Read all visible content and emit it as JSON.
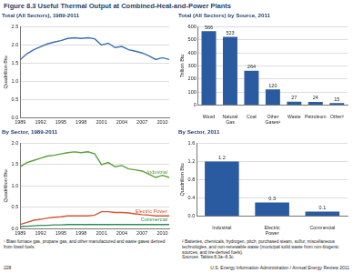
{
  "title": "Figure 8.3 Useful Thermal Output at Combined-Heat-and-Power Plants",
  "chart_data": [
    {
      "type": "line",
      "title": "Total (All Sectors), 1989-2011",
      "ylabel": "Quadrillion Btu",
      "x": [
        1989,
        1990,
        1991,
        1992,
        1993,
        1994,
        1995,
        1996,
        1997,
        1998,
        1999,
        2000,
        2001,
        2002,
        2003,
        2004,
        2005,
        2006,
        2007,
        2008,
        2009,
        2010,
        2011
      ],
      "values": [
        1.6,
        1.76,
        1.87,
        1.95,
        2.03,
        2.08,
        2.12,
        2.18,
        2.2,
        2.18,
        2.2,
        2.17,
        2.0,
        2.05,
        1.93,
        1.96,
        1.87,
        1.83,
        1.78,
        1.7,
        1.6,
        1.65,
        1.6
      ],
      "color": "#3a6fb0",
      "xlim": [
        1989,
        2011
      ],
      "xticks": [
        1989,
        1992,
        1995,
        1998,
        2001,
        2004,
        2007,
        2010
      ],
      "ylim": [
        0,
        2.5
      ],
      "yticks": [
        {
          "value": 0,
          "label": "0.0"
        },
        0.5,
        {
          "value": 1,
          "label": "1.0"
        },
        1.5,
        {
          "value": 2,
          "label": "2.0"
        },
        2.5
      ],
      "grid": true
    },
    {
      "type": "bar",
      "title": "Total (All Sectors) by Source, 2011",
      "ylabel": "Trillion Btu",
      "categories": [
        "Wood",
        "Natural Gas",
        "Coal",
        "Other Gases¹",
        "Waste",
        "Petroleum",
        "Other²"
      ],
      "values": [
        566,
        523,
        264,
        120,
        27,
        24,
        15
      ],
      "color": "#2a5aa0",
      "ylim": [
        0,
        600
      ],
      "yticks": [
        0,
        100,
        200,
        300,
        400,
        500,
        600
      ],
      "grid": true,
      "data_labels": true
    },
    {
      "type": "line",
      "title": "By Sector, 1989-2011",
      "ylabel": "Quadrillion Btu",
      "x": [
        1989,
        1990,
        1991,
        1992,
        1993,
        1994,
        1995,
        1996,
        1997,
        1998,
        1999,
        2000,
        2001,
        2002,
        2003,
        2004,
        2005,
        2006,
        2007,
        2008,
        2009,
        2010,
        2011
      ],
      "series": [
        {
          "name": "Industrial",
          "color": "#5a9e3a",
          "values": [
            1.45,
            1.55,
            1.6,
            1.65,
            1.7,
            1.72,
            1.75,
            1.78,
            1.8,
            1.78,
            1.8,
            1.75,
            1.5,
            1.55,
            1.45,
            1.48,
            1.4,
            1.38,
            1.35,
            1.28,
            1.2,
            1.25,
            1.2
          ]
        },
        {
          "name": "Electric Power",
          "color": "#d0573a",
          "values": [
            0.1,
            0.15,
            0.2,
            0.22,
            0.25,
            0.27,
            0.28,
            0.3,
            0.3,
            0.3,
            0.3,
            0.32,
            0.4,
            0.4,
            0.38,
            0.38,
            0.37,
            0.35,
            0.33,
            0.32,
            0.3,
            0.3,
            0.3
          ]
        },
        {
          "name": "Commercial",
          "color": "#2e8b57",
          "values": [
            0.05,
            0.06,
            0.07,
            0.08,
            0.08,
            0.09,
            0.09,
            0.1,
            0.1,
            0.1,
            0.1,
            0.1,
            0.1,
            0.1,
            0.1,
            0.1,
            0.1,
            0.1,
            0.1,
            0.1,
            0.1,
            0.1,
            0.1
          ]
        }
      ],
      "xlim": [
        1989,
        2011
      ],
      "xticks": [
        1989,
        1992,
        1995,
        1998,
        2001,
        2004,
        2007,
        2010
      ],
      "ylim": [
        0,
        2
      ],
      "yticks": [
        {
          "value": 0,
          "label": "0.0"
        },
        0.5,
        {
          "value": 1,
          "label": "1.0"
        },
        1.5,
        {
          "value": 2,
          "label": "2.0"
        }
      ],
      "grid": true
    },
    {
      "type": "bar",
      "title": "By Sector, 2011",
      "ylabel": "Quadrillion Btu",
      "categories": [
        "Industrial",
        "Electric Power",
        "Commercial"
      ],
      "values": [
        1.2,
        0.3,
        0.1
      ],
      "color": "#2a5aa0",
      "ylim": [
        0,
        1.6
      ],
      "yticks": [
        {
          "value": 0,
          "label": "0.0"
        },
        0.4,
        0.8,
        1.2,
        1.6
      ],
      "grid": true,
      "data_labels": true
    }
  ],
  "footnotes": [
    "¹ Blast furnace gas, propane gas, and other manufactured and waste gases derived from fossil fuels.",
    "² Batteries, chemicals, hydrogen, pitch, purchased steam, sulfur, miscellaneous technologies, and non-renewable waste (municipal solid waste from non-biogenic sources, and tire-derived fuels).",
    "Sources: Tables 8.3a–8.3c."
  ],
  "footer": {
    "page": "228",
    "text": "U.S. Energy Information Administration / Annual Energy Review 2011"
  }
}
